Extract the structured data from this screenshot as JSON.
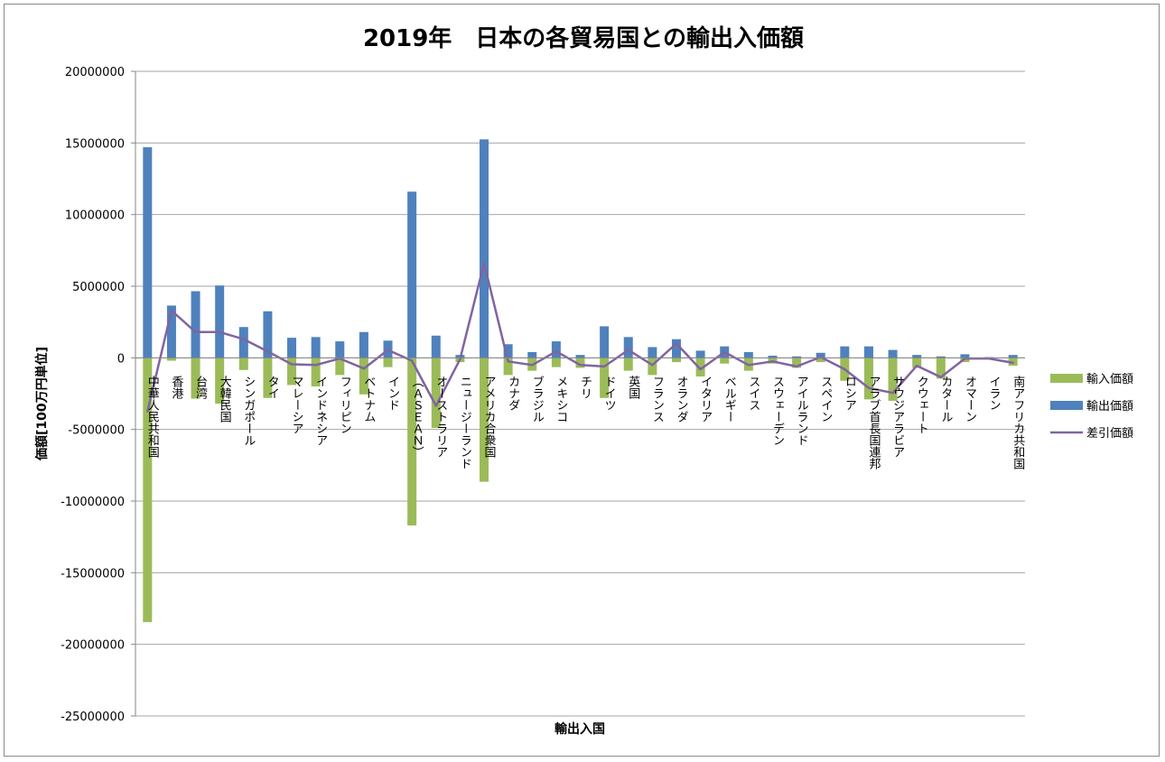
{
  "chart_data": {
    "type": "bar",
    "title": "2019年　日本の各貿易国との輸出入価額",
    "xlabel": "輸出入国",
    "ylabel": "価額[100万円単位]",
    "ylim": [
      -25000000,
      20000000
    ],
    "ytick_step": 5000000,
    "grid": true,
    "legend_position": "right",
    "categories": [
      "中華人民共和国",
      "香港",
      "台湾",
      "大韓民国",
      "シンガポール",
      "タイ",
      "マレーシア",
      "インドネシア",
      "フィリピン",
      "ベトナム",
      "インド",
      "（ＡＳＥＡＮ）",
      "オーストラリア",
      "ニュージーランド",
      "アメリカ合衆国",
      "カナダ",
      "ブラジル",
      "メキシコ",
      "チリ",
      "ドイツ",
      "英国",
      "フランス",
      "オランダ",
      "イタリア",
      "ベルギー",
      "スイス",
      "スウェーデン",
      "アイルランド",
      "スペイン",
      "ロシア",
      "アラブ首長国連邦",
      "サウジアラビア",
      "クウェート",
      "カタール",
      "オマーン",
      "イラン",
      "南アフリカ共和国"
    ],
    "series": [
      {
        "name": "輸入価額",
        "kind": "bar",
        "color": "#9bbb59",
        "values": [
          -18450000,
          -200000,
          -2850000,
          -3200000,
          -850000,
          -2800000,
          -1900000,
          -2000000,
          -1200000,
          -2550000,
          -650000,
          -11700000,
          -4900000,
          -300000,
          -8650000,
          -1200000,
          -900000,
          -650000,
          -700000,
          -2800000,
          -900000,
          -1200000,
          -300000,
          -1300000,
          -400000,
          -900000,
          -400000,
          -700000,
          -300000,
          -1600000,
          -2900000,
          -3000000,
          -700000,
          -1450000,
          -300000,
          -100000,
          -550000
        ]
      },
      {
        "name": "輸出価額",
        "kind": "bar",
        "color": "#4f81bd",
        "values": [
          14700000,
          3650000,
          4650000,
          5050000,
          2150000,
          3250000,
          1400000,
          1450000,
          1150000,
          1800000,
          1200000,
          11600000,
          1550000,
          200000,
          15250000,
          950000,
          400000,
          1150000,
          200000,
          2200000,
          1450000,
          750000,
          1300000,
          500000,
          800000,
          400000,
          150000,
          100000,
          350000,
          800000,
          800000,
          550000,
          200000,
          100000,
          250000,
          50000,
          200000
        ]
      },
      {
        "name": "差引価額",
        "kind": "line",
        "color": "#8064a2",
        "values": [
          -3750000,
          3300000,
          1800000,
          1800000,
          1300000,
          450000,
          -450000,
          -500000,
          -50000,
          -750000,
          550000,
          -200000,
          -3350000,
          -100000,
          6600000,
          -250000,
          -500000,
          450000,
          -500000,
          -600000,
          550000,
          -500000,
          1000000,
          -800000,
          400000,
          -500000,
          -250000,
          -600000,
          50000,
          -800000,
          -2100000,
          -2450000,
          -550000,
          -1350000,
          -50000,
          -50000,
          -350000
        ]
      }
    ]
  }
}
